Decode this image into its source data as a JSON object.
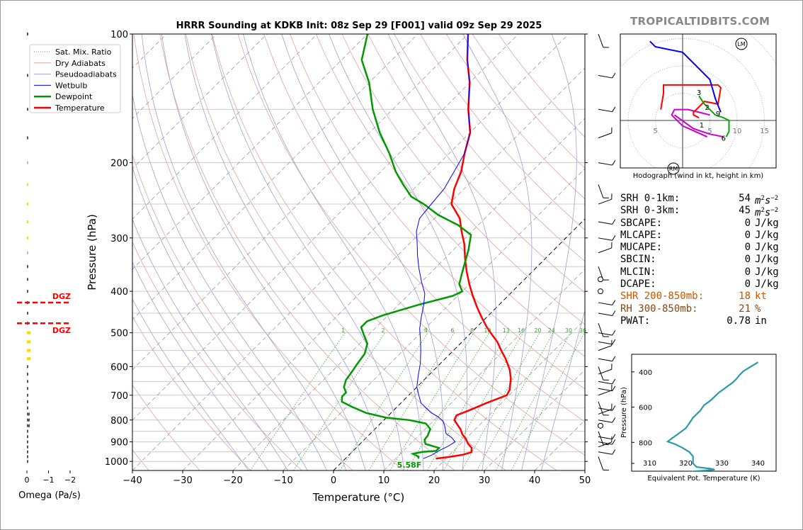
{
  "title": "HRRR Sounding at KDKB Init: 08z Sep 29 [F001] valid 09z Sep 29 2025",
  "watermark": "TROPICALTIDBITS.COM",
  "colors": {
    "temperature": "#ff0000",
    "dewpoint": "#009900",
    "wetbulb": "#0000ff",
    "dgz": "#ff0000",
    "omega_gray": "#555555",
    "omega_yellow": "#ffd700",
    "theta_e": "#2a9aa6",
    "shr": "#cc5500",
    "rh": "#8b4513",
    "hodo_low": "#cc00cc",
    "hodo_mid": "#ff0000",
    "hodo_high": "#00aa00",
    "hodo_top": "#0000ff"
  },
  "legend": [
    {
      "label": "Sat. Mix. Ratio",
      "style": "dotted",
      "color": "#3aa03a"
    },
    {
      "label": "Dry Adiabats",
      "style": "solid",
      "color": "#e3a3a3"
    },
    {
      "label": "Pseudoadiabats",
      "style": "solid",
      "color": "#a0a0d8"
    },
    {
      "label": "Wetbulb",
      "style": "solid",
      "color": "#0000ff"
    },
    {
      "label": "Dewpoint",
      "style": "solid",
      "color": "#009900"
    },
    {
      "label": "Temperature",
      "style": "solid",
      "color": "#ff0000"
    }
  ],
  "chart_data": [
    {
      "type": "line",
      "name": "skew-t",
      "xlabel": "Temperature (°C)",
      "ylabel": "Pressure (hPa)",
      "x_ticks": [
        -40,
        -30,
        -20,
        -10,
        0,
        10,
        20,
        30,
        40,
        50
      ],
      "x_tick_labels": [
        "−40",
        "−30",
        "−20",
        "−10",
        "0",
        "10",
        "20",
        "30",
        "40",
        "50"
      ],
      "y_ticks": [
        100,
        200,
        300,
        400,
        500,
        600,
        700,
        800,
        900,
        1000
      ],
      "xlim": [
        -40,
        50
      ],
      "ylim": [
        1050,
        100
      ],
      "y_scale": "log",
      "surface_label": "5.58F",
      "mixing_ratio_labels": [
        "1",
        "2",
        "4",
        "6",
        "8",
        "10",
        "13",
        "16",
        "20",
        "24",
        "30",
        "36"
      ],
      "series": [
        {
          "name": "Temperature",
          "points": [
            [
              18,
              985
            ],
            [
              20.5,
              975
            ],
            [
              22.5,
              965
            ],
            [
              23.8,
              952
            ],
            [
              23,
              930
            ],
            [
              21.5,
              910
            ],
            [
              20,
              885
            ],
            [
              18.5,
              865
            ],
            [
              17,
              840
            ],
            [
              15.5,
              820
            ],
            [
              14,
              800
            ],
            [
              13.5,
              780
            ],
            [
              15,
              760
            ],
            [
              17,
              730
            ],
            [
              19.5,
              700
            ],
            [
              19,
              680
            ],
            [
              17,
              640
            ],
            [
              15,
              610
            ],
            [
              12,
              575
            ],
            [
              9.5,
              550
            ],
            [
              7,
              525
            ],
            [
              4.5,
              505
            ],
            [
              2,
              485
            ],
            [
              -1,
              460
            ],
            [
              -4,
              435
            ],
            [
              -7,
              410
            ],
            [
              -10,
              385
            ],
            [
              -13,
              360
            ],
            [
              -16,
              335
            ],
            [
              -19,
              310
            ],
            [
              -22,
              290
            ],
            [
              -25,
              270
            ],
            [
              -29.5,
              250
            ],
            [
              -32,
              230
            ],
            [
              -34,
              210
            ],
            [
              -37,
              190
            ],
            [
              -40,
              170
            ],
            [
              -45,
              150
            ],
            [
              -50,
              130
            ],
            [
              -55,
              115
            ],
            [
              -60,
              100
            ]
          ]
        },
        {
          "name": "Dewpoint",
          "points": [
            [
              14.5,
              985
            ],
            [
              14.2,
              975
            ],
            [
              12.5,
              960
            ],
            [
              14,
              950
            ],
            [
              16.5,
              945
            ],
            [
              16.5,
              930
            ],
            [
              13,
              910
            ],
            [
              12,
              890
            ],
            [
              11.8,
              870
            ],
            [
              11,
              840
            ],
            [
              9,
              815
            ],
            [
              5,
              800
            ],
            [
              0,
              790
            ],
            [
              -5,
              770
            ],
            [
              -9,
              745
            ],
            [
              -12,
              725
            ],
            [
              -13,
              705
            ],
            [
              -13,
              690
            ],
            [
              -14.5,
              670
            ],
            [
              -15.5,
              645
            ],
            [
              -16,
              615
            ],
            [
              -16.5,
              590
            ],
            [
              -17,
              560
            ],
            [
              -18.5,
              530
            ],
            [
              -21,
              505
            ],
            [
              -23,
              485
            ],
            [
              -23,
              470
            ],
            [
              -21,
              455
            ],
            [
              -16,
              430
            ],
            [
              -11,
              410
            ],
            [
              -10,
              400
            ],
            [
              -12,
              385
            ],
            [
              -13.5,
              365
            ],
            [
              -15,
              345
            ],
            [
              -17,
              320
            ],
            [
              -19.5,
              295
            ],
            [
              -24,
              280
            ],
            [
              -30,
              265
            ],
            [
              -35,
              250
            ],
            [
              -39,
              240
            ],
            [
              -43,
              225
            ],
            [
              -47,
              210
            ],
            [
              -52,
              190
            ],
            [
              -58,
              170
            ],
            [
              -64,
              150
            ],
            [
              -70,
              130
            ],
            [
              -76,
              115
            ],
            [
              -80,
              100
            ]
          ]
        },
        {
          "name": "Wetbulb",
          "points": [
            [
              15.5,
              985
            ],
            [
              16.5,
              965
            ],
            [
              17,
              945
            ],
            [
              18,
              920
            ],
            [
              18.5,
              900
            ],
            [
              17,
              880
            ],
            [
              15,
              860
            ],
            [
              13.5,
              830
            ],
            [
              12,
              805
            ],
            [
              10,
              785
            ],
            [
              8,
              770
            ],
            [
              6,
              750
            ],
            [
              4,
              730
            ],
            [
              2,
              700
            ],
            [
              0,
              670
            ],
            [
              -2,
              630
            ],
            [
              -4,
              590
            ],
            [
              -6.5,
              550
            ],
            [
              -9,
              515
            ],
            [
              -11,
              490
            ],
            [
              -13,
              460
            ],
            [
              -15,
              430
            ],
            [
              -17,
              405
            ],
            [
              -20,
              380
            ],
            [
              -23,
              355
            ],
            [
              -26,
              330
            ],
            [
              -29,
              305
            ],
            [
              -31,
              290
            ],
            [
              -33,
              270
            ],
            [
              -33.5,
              250
            ],
            [
              -34,
              230
            ],
            [
              -37,
              190
            ],
            [
              -40,
              170
            ],
            [
              -45,
              150
            ],
            [
              -50,
              130
            ],
            [
              -55,
              115
            ],
            [
              -60,
              100
            ]
          ]
        }
      ]
    },
    {
      "type": "line",
      "name": "omega",
      "xlabel": "Omega (Pa/s)",
      "x_ticks": [
        0,
        -1,
        -2
      ],
      "x_tick_labels": [
        "0",
        "−1",
        "−2"
      ],
      "dgz_label": "DGZ",
      "dgz_bounds": [
        425,
        475
      ]
    },
    {
      "type": "line",
      "name": "hodograph",
      "xlabel": "Hodograph (wind in kt, height in km)",
      "ticks": [
        "5",
        "5",
        "10",
        "15"
      ],
      "markers": [
        "1",
        "2",
        "3",
        "6",
        "9"
      ],
      "motion_labels": [
        "LM",
        "RM"
      ]
    },
    {
      "type": "line",
      "name": "theta-e",
      "xlabel": "Equivalent Pot. Temperature (K)",
      "ylabel": "Pressure (hPa)",
      "x_ticks": [
        310,
        320,
        330,
        340
      ],
      "y_ticks": [
        400,
        600,
        800
      ],
      "points": [
        [
          319,
          985
        ],
        [
          321,
          975
        ],
        [
          322,
          965
        ],
        [
          328,
          955
        ],
        [
          327,
          950
        ],
        [
          323,
          940
        ],
        [
          322,
          920
        ],
        [
          322,
          880
        ],
        [
          321,
          855
        ],
        [
          319,
          830
        ],
        [
          317,
          810
        ],
        [
          315,
          795
        ],
        [
          316,
          780
        ],
        [
          318,
          750
        ],
        [
          320,
          720
        ],
        [
          321,
          690
        ],
        [
          322,
          660
        ],
        [
          324,
          620
        ],
        [
          325,
          590
        ],
        [
          327,
          560
        ],
        [
          329,
          520
        ],
        [
          331,
          490
        ],
        [
          333,
          460
        ],
        [
          334,
          440
        ],
        [
          335,
          415
        ],
        [
          336,
          395
        ],
        [
          338,
          370
        ],
        [
          340,
          345
        ]
      ]
    }
  ],
  "stats": [
    {
      "label": "SRH 0-1km:",
      "value": "54",
      "unit": "m2s-2",
      "color": "#000"
    },
    {
      "label": "SRH 0-3km:",
      "value": "45",
      "unit": "m2s-2",
      "color": "#000"
    },
    {
      "label": "SBCAPE:",
      "value": "0",
      "unit": "J/kg",
      "color": "#000"
    },
    {
      "label": "MLCAPE:",
      "value": "0",
      "unit": "J/kg",
      "color": "#000"
    },
    {
      "label": "MUCAPE:",
      "value": "0",
      "unit": "J/kg",
      "color": "#000"
    },
    {
      "label": "SBCIN:",
      "value": "0",
      "unit": "J/kg",
      "color": "#000"
    },
    {
      "label": "MLCIN:",
      "value": "0",
      "unit": "J/kg",
      "color": "#000"
    },
    {
      "label": "DCAPE:",
      "value": "0",
      "unit": "J/kg",
      "color": "#000"
    },
    {
      "label": "SHR 200-850mb:",
      "value": "18",
      "unit": "kt",
      "color": "#cc5500"
    },
    {
      "label": "RH 300-850mb:",
      "value": "21",
      "unit": "%",
      "color": "#8b4513"
    },
    {
      "label": "PWAT:",
      "value": "0.78",
      "unit": "in",
      "color": "#000"
    }
  ]
}
